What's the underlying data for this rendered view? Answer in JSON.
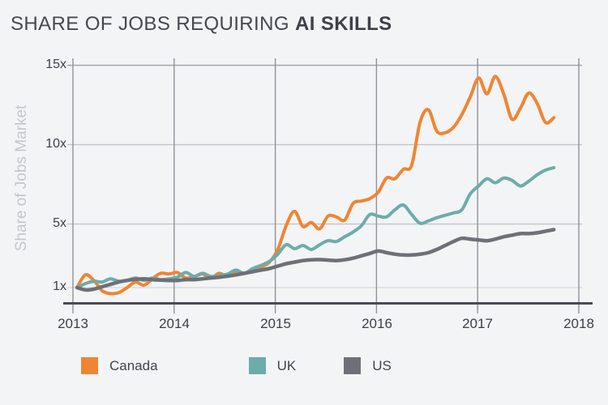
{
  "title": {
    "prefix": "SHARE OF JOBS REQUIRING ",
    "emphasis": "AI SKILLS"
  },
  "colors": {
    "background": "#f3f4f6",
    "title_text": "#46484f",
    "tick_text": "#3e4048",
    "axis_line": "#4a4b52",
    "year_gridline": "#90919a",
    "top_gridline": "#9ea0a8",
    "mid_gridline": "#c3c4cb",
    "base_gridline": "#dbdce1",
    "y_axis_title_text": "#c5c6cc",
    "canada": "#EF8532",
    "uk": "#6CACAB",
    "us": "#6F7077"
  },
  "chart_data": {
    "type": "line",
    "title": "SHARE OF JOBS REQUIRING AI SKILLS",
    "xlabel": "",
    "ylabel": "Share of Jobs Market",
    "x_start": "2013-01",
    "x_end": "2017-10",
    "x_interval": "monthly",
    "x_tick_labels": [
      "2013",
      "2014",
      "2015",
      "2016",
      "2017",
      "2018"
    ],
    "y_tick_labels": [
      "15x",
      "10x",
      "5x",
      "1x"
    ],
    "y_tick_values": [
      15,
      10,
      5,
      1
    ],
    "xlim": [
      2013,
      2018
    ],
    "ylim": [
      0,
      15.5
    ],
    "grid": true,
    "legend_position": "bottom",
    "series": [
      {
        "name": "Canada",
        "color": "#EF8532",
        "values": [
          1.0,
          1.8,
          1.45,
          0.8,
          0.62,
          0.68,
          1.0,
          1.35,
          1.15,
          1.55,
          1.9,
          1.85,
          1.95,
          1.6,
          1.7,
          1.85,
          1.6,
          1.9,
          1.7,
          2.0,
          1.9,
          2.1,
          2.3,
          2.6,
          3.4,
          4.9,
          5.8,
          4.85,
          5.1,
          4.7,
          5.5,
          5.45,
          5.25,
          6.3,
          6.45,
          6.6,
          7.0,
          7.9,
          7.85,
          8.45,
          8.7,
          11.4,
          12.2,
          10.85,
          10.75,
          11.1,
          11.9,
          13.0,
          14.2,
          13.2,
          14.3,
          13.2,
          11.6,
          12.3,
          13.25,
          12.6,
          11.4,
          11.7
        ]
      },
      {
        "name": "UK",
        "color": "#6CACAB",
        "values": [
          1.0,
          1.25,
          1.4,
          1.35,
          1.55,
          1.4,
          1.45,
          1.6,
          1.45,
          1.6,
          1.5,
          1.55,
          1.65,
          1.95,
          1.7,
          1.9,
          1.7,
          1.75,
          1.85,
          2.1,
          1.9,
          2.2,
          2.4,
          2.65,
          3.1,
          3.7,
          3.45,
          3.65,
          3.4,
          3.7,
          3.95,
          3.9,
          4.2,
          4.5,
          4.9,
          5.6,
          5.5,
          5.45,
          5.9,
          6.2,
          5.6,
          5.05,
          5.2,
          5.4,
          5.55,
          5.7,
          5.9,
          6.9,
          7.4,
          7.85,
          7.6,
          7.9,
          7.75,
          7.4,
          7.7,
          8.1,
          8.4,
          8.55
        ]
      },
      {
        "name": "US",
        "color": "#6F7077",
        "values": [
          1.0,
          0.85,
          0.9,
          1.05,
          1.2,
          1.35,
          1.45,
          1.52,
          1.55,
          1.5,
          1.47,
          1.45,
          1.45,
          1.5,
          1.5,
          1.55,
          1.6,
          1.65,
          1.72,
          1.8,
          1.9,
          2.0,
          2.1,
          2.2,
          2.35,
          2.5,
          2.6,
          2.7,
          2.75,
          2.76,
          2.73,
          2.7,
          2.75,
          2.85,
          3.0,
          3.15,
          3.3,
          3.2,
          3.1,
          3.05,
          3.05,
          3.1,
          3.2,
          3.4,
          3.65,
          3.9,
          4.1,
          4.05,
          4.0,
          3.95,
          4.05,
          4.2,
          4.3,
          4.4,
          4.4,
          4.45,
          4.55,
          4.65
        ]
      }
    ]
  },
  "legend": {
    "items": [
      {
        "label": "Canada",
        "color": "#EF8532"
      },
      {
        "label": "UK",
        "color": "#6CACAB"
      },
      {
        "label": "US",
        "color": "#6F7077"
      }
    ]
  }
}
